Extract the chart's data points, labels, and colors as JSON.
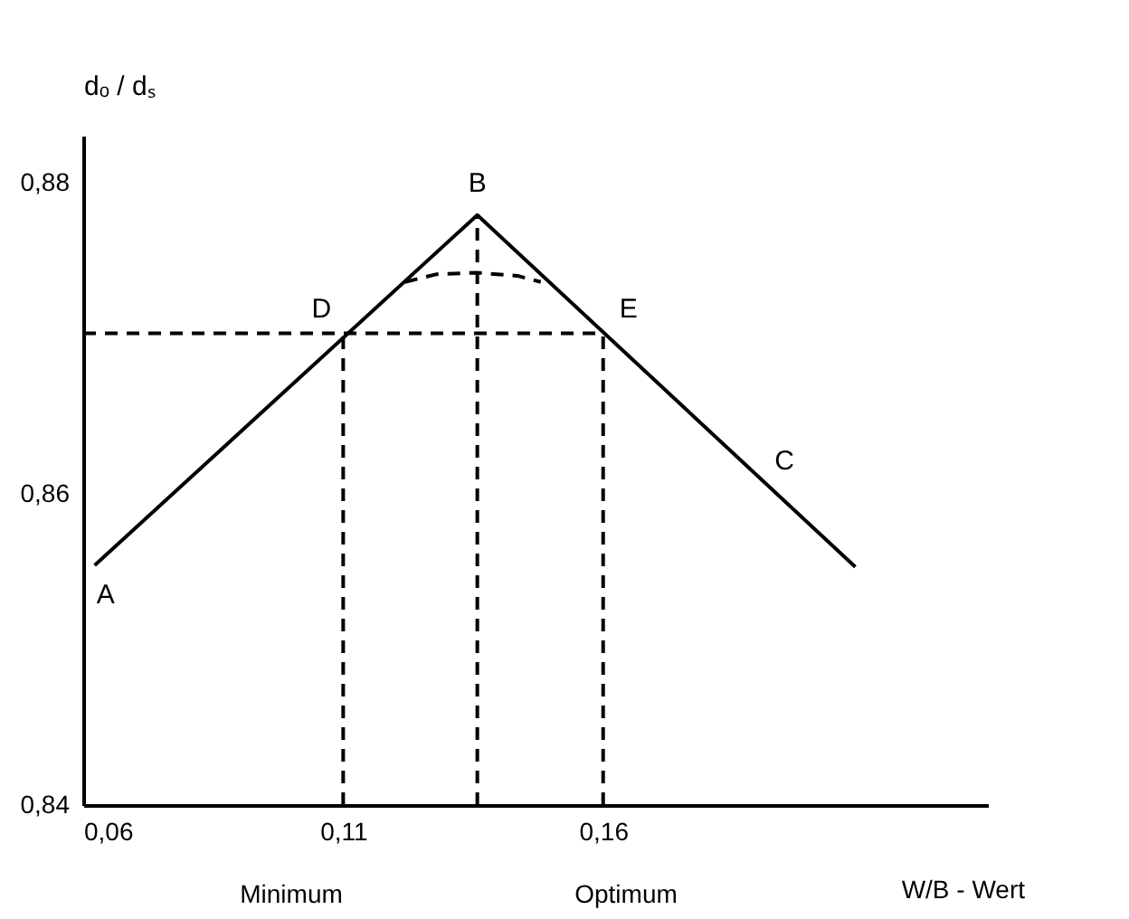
{
  "chart_data": {
    "type": "line",
    "xlabel": "W/B - Wert",
    "ylabel": "dₒ / dₛ",
    "xlim": [
      0.06,
      0.234
    ],
    "xticks": [
      {
        "value": 0.06,
        "label": "0,06"
      },
      {
        "value": 0.11,
        "label": "0,11"
      },
      {
        "value": 0.16,
        "label": "0,16"
      }
    ],
    "ylim": [
      0.84,
      0.883
    ],
    "yticks": [
      {
        "value": 0.84,
        "label": "0,84"
      },
      {
        "value": 0.86,
        "label": "0,86"
      },
      {
        "value": 0.88,
        "label": "0,88"
      }
    ],
    "grid": false,
    "legend": false,
    "marker": "none",
    "series": [
      {
        "color": "#000000",
        "line_style": "solid",
        "x": [
          0.0622,
          0.1358,
          0.2085
        ],
        "values": [
          0.8554,
          0.8779,
          0.8553
        ]
      },
      {
        "color": "#000000",
        "line_style": "dashed",
        "x": [
          0.1219,
          0.128,
          0.1357,
          0.1435,
          0.148
        ],
        "values": [
          0.8736,
          0.8741,
          0.8742,
          0.874,
          0.8736
        ]
      },
      {
        "color": "#000000",
        "line_style": "dashed",
        "x": [
          0.06,
          0.16
        ],
        "values": [
          0.8703,
          0.8703
        ]
      },
      {
        "color": "#000000",
        "line_style": "dashed",
        "x": [
          0.11,
          0.11
        ],
        "values": [
          0.84,
          0.8703
        ]
      },
      {
        "color": "#000000",
        "line_style": "dashed",
        "x": [
          0.1358,
          0.1358
        ],
        "values": [
          0.84,
          0.8779
        ]
      },
      {
        "color": "#000000",
        "line_style": "dashed",
        "x": [
          0.16,
          0.16
        ],
        "values": [
          0.84,
          0.8703
        ]
      }
    ],
    "annotations": [
      {
        "text": "A",
        "x": 0.0622,
        "y": 0.8554
      },
      {
        "text": "B",
        "x": 0.1358,
        "y": 0.8779
      },
      {
        "text": "C",
        "x": 0.19,
        "y": 0.861
      },
      {
        "text": "D",
        "x": 0.11,
        "y": 0.8703
      },
      {
        "text": "E",
        "x": 0.16,
        "y": 0.8703
      },
      "Minimum",
      "Optimum"
    ]
  }
}
